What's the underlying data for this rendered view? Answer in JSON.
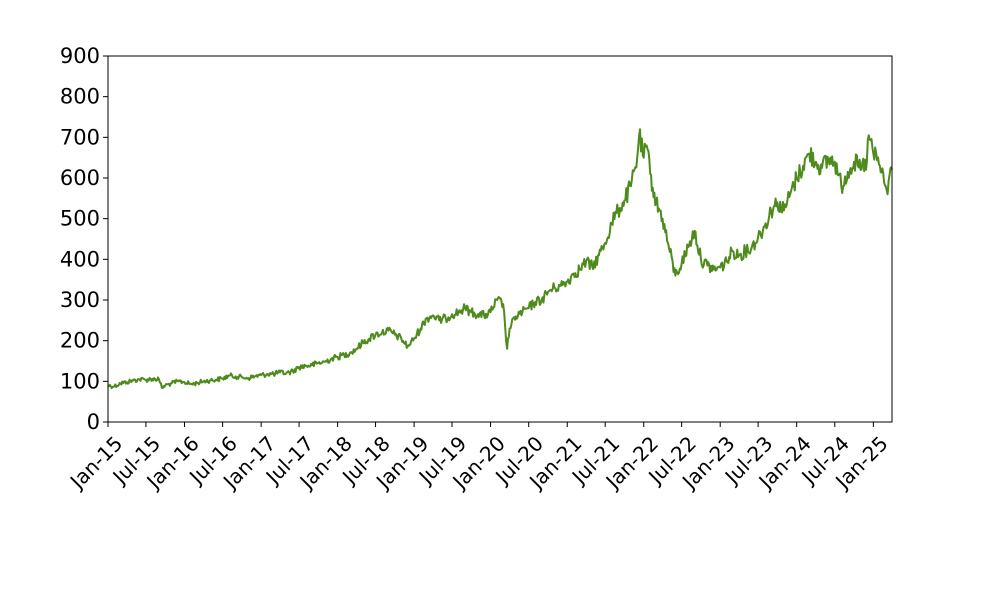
{
  "chart_data": {
    "type": "line",
    "title": "",
    "xlabel": "",
    "ylabel": "",
    "grid": false,
    "xlim": [
      "2015-01-01",
      "2025-03-31"
    ],
    "ylim": [
      0,
      900
    ],
    "y_ticks": [
      0,
      100,
      200,
      300,
      400,
      500,
      600,
      700,
      800,
      900
    ],
    "x_ticks": [
      {
        "date": "2015-01-01",
        "label": "Jan-15"
      },
      {
        "date": "2015-07-01",
        "label": "Jul-15"
      },
      {
        "date": "2016-01-01",
        "label": "Jan-16"
      },
      {
        "date": "2016-07-01",
        "label": "Jul-16"
      },
      {
        "date": "2017-01-01",
        "label": "Jan-17"
      },
      {
        "date": "2017-07-01",
        "label": "Jul-17"
      },
      {
        "date": "2018-01-01",
        "label": "Jan-18"
      },
      {
        "date": "2018-07-01",
        "label": "Jul-18"
      },
      {
        "date": "2019-01-01",
        "label": "Jan-19"
      },
      {
        "date": "2019-07-01",
        "label": "Jul-19"
      },
      {
        "date": "2020-01-01",
        "label": "Jan-20"
      },
      {
        "date": "2020-07-01",
        "label": "Jul-20"
      },
      {
        "date": "2021-01-01",
        "label": "Jan-21"
      },
      {
        "date": "2021-07-01",
        "label": "Jul-21"
      },
      {
        "date": "2022-01-01",
        "label": "Jan-22"
      },
      {
        "date": "2022-07-01",
        "label": "Jul-22"
      },
      {
        "date": "2023-01-01",
        "label": "Jan-23"
      },
      {
        "date": "2023-07-01",
        "label": "Jul-23"
      },
      {
        "date": "2024-01-01",
        "label": "Jan-24"
      },
      {
        "date": "2024-07-01",
        "label": "Jul-24"
      },
      {
        "date": "2025-01-01",
        "label": "Jan-25"
      }
    ],
    "series": [
      {
        "color": "#4e8a1c",
        "points": [
          [
            "2015-01-01",
            90
          ],
          [
            "2015-02-01",
            88
          ],
          [
            "2015-03-01",
            95
          ],
          [
            "2015-04-01",
            98
          ],
          [
            "2015-05-01",
            102
          ],
          [
            "2015-06-01",
            105
          ],
          [
            "2015-07-01",
            104
          ],
          [
            "2015-08-01",
            106
          ],
          [
            "2015-09-01",
            105
          ],
          [
            "2015-09-15",
            84
          ],
          [
            "2015-10-01",
            90
          ],
          [
            "2015-11-01",
            95
          ],
          [
            "2015-12-01",
            100
          ],
          [
            "2016-01-01",
            98
          ],
          [
            "2016-02-01",
            93
          ],
          [
            "2016-03-01",
            96
          ],
          [
            "2016-04-01",
            100
          ],
          [
            "2016-05-01",
            102
          ],
          [
            "2016-06-01",
            104
          ],
          [
            "2016-07-01",
            107
          ],
          [
            "2016-08-01",
            114
          ],
          [
            "2016-09-01",
            112
          ],
          [
            "2016-10-01",
            110
          ],
          [
            "2016-11-01",
            108
          ],
          [
            "2016-12-01",
            112
          ],
          [
            "2017-01-01",
            115
          ],
          [
            "2017-02-01",
            118
          ],
          [
            "2017-03-01",
            118
          ],
          [
            "2017-04-01",
            122
          ],
          [
            "2017-05-01",
            120
          ],
          [
            "2017-06-01",
            125
          ],
          [
            "2017-07-01",
            135
          ],
          [
            "2017-08-01",
            138
          ],
          [
            "2017-09-01",
            140
          ],
          [
            "2017-10-01",
            145
          ],
          [
            "2017-11-01",
            148
          ],
          [
            "2017-12-01",
            155
          ],
          [
            "2018-01-01",
            160
          ],
          [
            "2018-02-01",
            165
          ],
          [
            "2018-03-01",
            170
          ],
          [
            "2018-04-01",
            180
          ],
          [
            "2018-05-01",
            195
          ],
          [
            "2018-06-01",
            205
          ],
          [
            "2018-07-01",
            215
          ],
          [
            "2018-08-01",
            220
          ],
          [
            "2018-09-01",
            225
          ],
          [
            "2018-10-01",
            215
          ],
          [
            "2018-11-01",
            205
          ],
          [
            "2018-12-01",
            185
          ],
          [
            "2019-01-01",
            205
          ],
          [
            "2019-02-01",
            230
          ],
          [
            "2019-03-01",
            255
          ],
          [
            "2019-04-01",
            262
          ],
          [
            "2019-05-01",
            250
          ],
          [
            "2019-06-01",
            255
          ],
          [
            "2019-07-01",
            265
          ],
          [
            "2019-08-01",
            270
          ],
          [
            "2019-09-01",
            280
          ],
          [
            "2019-10-01",
            270
          ],
          [
            "2019-11-01",
            265
          ],
          [
            "2019-12-01",
            262
          ],
          [
            "2020-01-01",
            270
          ],
          [
            "2020-02-01",
            300
          ],
          [
            "2020-03-01",
            290
          ],
          [
            "2020-03-20",
            180
          ],
          [
            "2020-04-01",
            230
          ],
          [
            "2020-05-01",
            260
          ],
          [
            "2020-06-01",
            270
          ],
          [
            "2020-07-01",
            280
          ],
          [
            "2020-08-01",
            295
          ],
          [
            "2020-09-01",
            300
          ],
          [
            "2020-10-01",
            320
          ],
          [
            "2020-11-01",
            330
          ],
          [
            "2020-12-01",
            335
          ],
          [
            "2021-01-01",
            345
          ],
          [
            "2021-02-01",
            365
          ],
          [
            "2021-03-01",
            375
          ],
          [
            "2021-04-01",
            395
          ],
          [
            "2021-05-01",
            380
          ],
          [
            "2021-06-01",
            410
          ],
          [
            "2021-07-01",
            440
          ],
          [
            "2021-08-01",
            490
          ],
          [
            "2021-09-01",
            520
          ],
          [
            "2021-10-01",
            545
          ],
          [
            "2021-11-01",
            580
          ],
          [
            "2021-12-01",
            650
          ],
          [
            "2021-12-10",
            705
          ],
          [
            "2022-01-01",
            650
          ],
          [
            "2022-01-15",
            680
          ],
          [
            "2022-02-01",
            610
          ],
          [
            "2022-03-01",
            540
          ],
          [
            "2022-04-01",
            500
          ],
          [
            "2022-05-01",
            430
          ],
          [
            "2022-06-01",
            360
          ],
          [
            "2022-07-01",
            390
          ],
          [
            "2022-08-01",
            430
          ],
          [
            "2022-09-01",
            470
          ],
          [
            "2022-10-01",
            400
          ],
          [
            "2022-11-01",
            385
          ],
          [
            "2022-12-01",
            375
          ],
          [
            "2023-01-01",
            380
          ],
          [
            "2023-02-01",
            395
          ],
          [
            "2023-03-01",
            420
          ],
          [
            "2023-04-01",
            410
          ],
          [
            "2023-05-01",
            420
          ],
          [
            "2023-06-01",
            430
          ],
          [
            "2023-07-01",
            455
          ],
          [
            "2023-08-01",
            480
          ],
          [
            "2023-09-01",
            520
          ],
          [
            "2023-10-01",
            540
          ],
          [
            "2023-11-01",
            520
          ],
          [
            "2023-12-01",
            560
          ],
          [
            "2024-01-01",
            600
          ],
          [
            "2024-02-01",
            630
          ],
          [
            "2024-03-01",
            660
          ],
          [
            "2024-04-01",
            640
          ],
          [
            "2024-05-01",
            625
          ],
          [
            "2024-06-01",
            645
          ],
          [
            "2024-07-01",
            640
          ],
          [
            "2024-08-01",
            580
          ],
          [
            "2024-09-01",
            615
          ],
          [
            "2024-10-01",
            640
          ],
          [
            "2024-11-01",
            620
          ],
          [
            "2024-12-01",
            640
          ],
          [
            "2024-12-10",
            705
          ],
          [
            "2025-01-01",
            660
          ],
          [
            "2025-02-01",
            630
          ],
          [
            "2025-03-01",
            580
          ],
          [
            "2025-03-10",
            560
          ],
          [
            "2025-03-20",
            610
          ],
          [
            "2025-03-31",
            620
          ]
        ]
      }
    ]
  }
}
